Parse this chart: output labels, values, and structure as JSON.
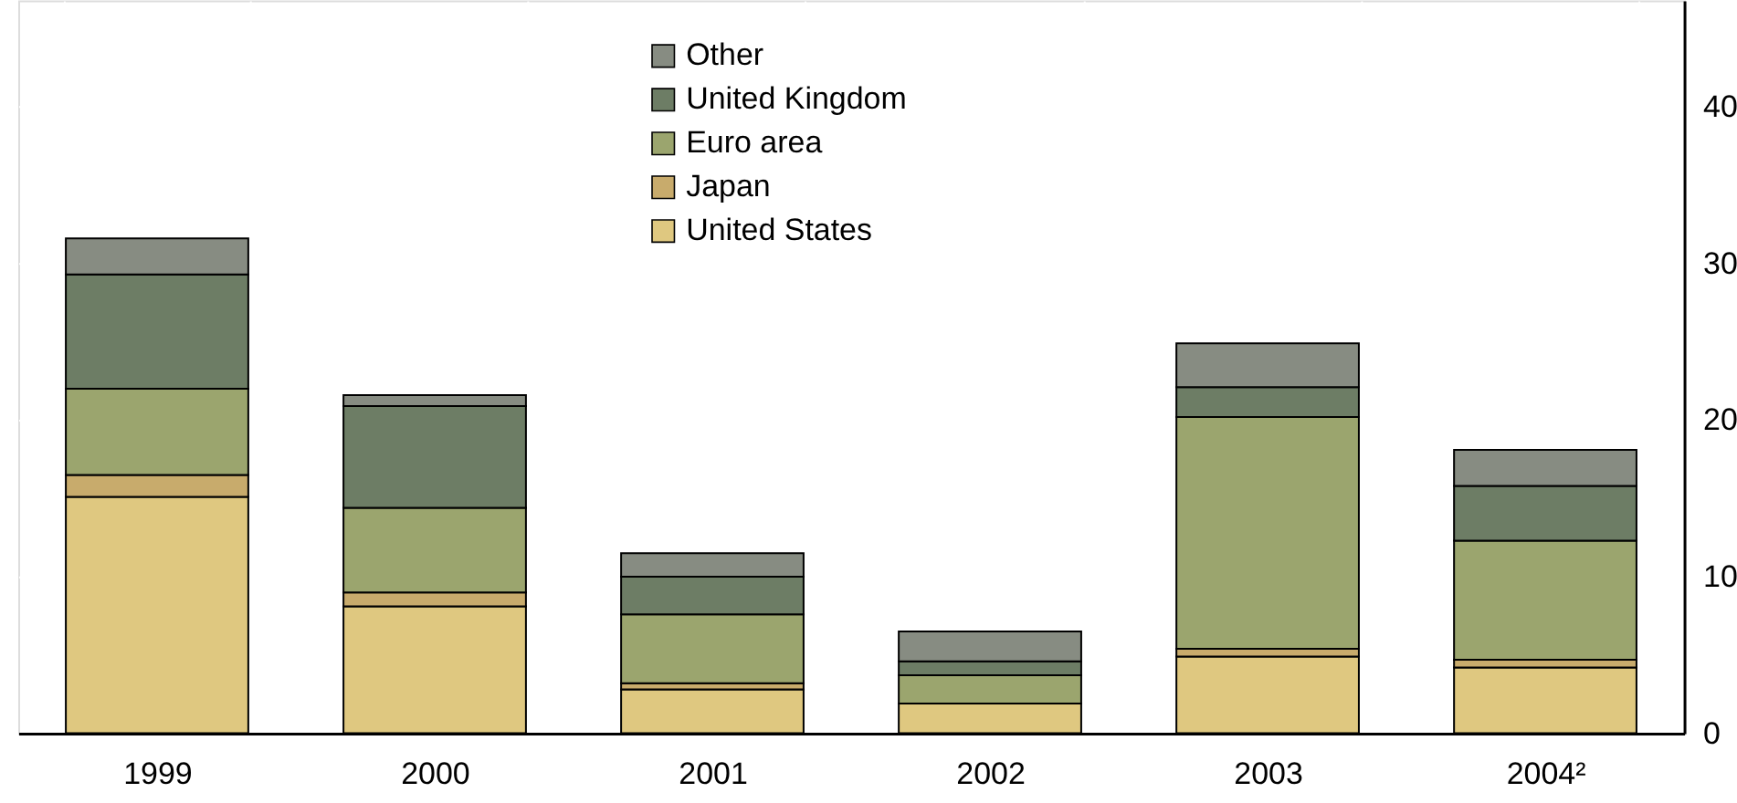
{
  "chart_data": {
    "type": "bar",
    "stacked": true,
    "categories": [
      "1999",
      "2000",
      "2001",
      "2002",
      "2003",
      "2004²"
    ],
    "series": [
      {
        "name": "United States",
        "color": "#dfc880",
        "values": [
          15.1,
          8.1,
          2.8,
          1.9,
          4.9,
          4.2
        ]
      },
      {
        "name": "Japan",
        "color": "#c8ab6c",
        "values": [
          1.4,
          0.9,
          0.4,
          0,
          0.5,
          0.5
        ]
      },
      {
        "name": "Euro area",
        "color": "#9ba56e",
        "values": [
          5.5,
          5.4,
          4.4,
          1.8,
          14.8,
          7.6
        ]
      },
      {
        "name": "United Kingdom",
        "color": "#6d7d65",
        "values": [
          7.3,
          6.5,
          2.4,
          0.9,
          1.9,
          3.5
        ]
      },
      {
        "name": "Other",
        "color": "#878c82",
        "values": [
          2.3,
          0.7,
          1.5,
          1.9,
          2.8,
          2.3
        ]
      }
    ],
    "ylim": [
      0,
      46.8
    ],
    "yticks": [
      0,
      10,
      20,
      30,
      40
    ],
    "grid": true,
    "legend": "top"
  }
}
